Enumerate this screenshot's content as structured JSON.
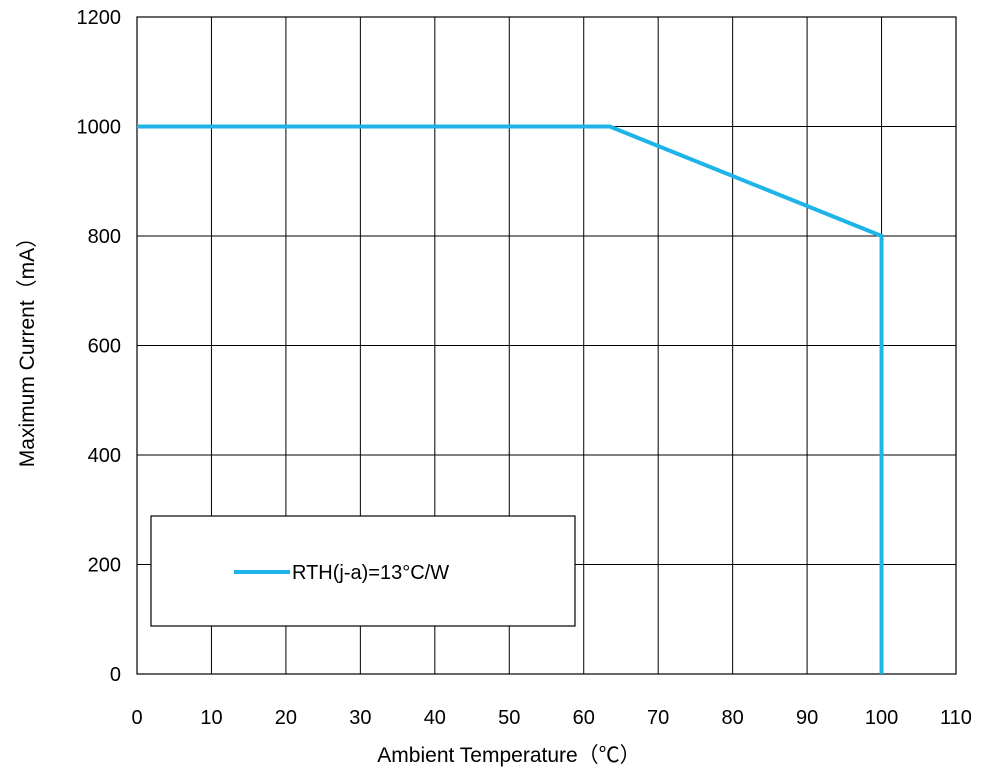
{
  "chart_data": {
    "type": "line",
    "xlabel": "Ambient Temperature（℃）",
    "ylabel": "Maximum Current（mA）",
    "xlim": [
      0,
      110
    ],
    "ylim": [
      0,
      1200
    ],
    "x_ticks": [
      0,
      10,
      20,
      30,
      40,
      50,
      60,
      70,
      80,
      90,
      100,
      110
    ],
    "y_ticks": [
      0,
      200,
      400,
      600,
      800,
      1000,
      1200
    ],
    "grid": true,
    "legend_position": "lower-left",
    "series": [
      {
        "name": "RTH(j-a)=13°C/W",
        "color": "#1eb4e8",
        "points": [
          [
            0,
            1000
          ],
          [
            63.5,
            1000
          ],
          [
            100,
            800
          ],
          [
            100,
            0
          ]
        ]
      }
    ]
  }
}
